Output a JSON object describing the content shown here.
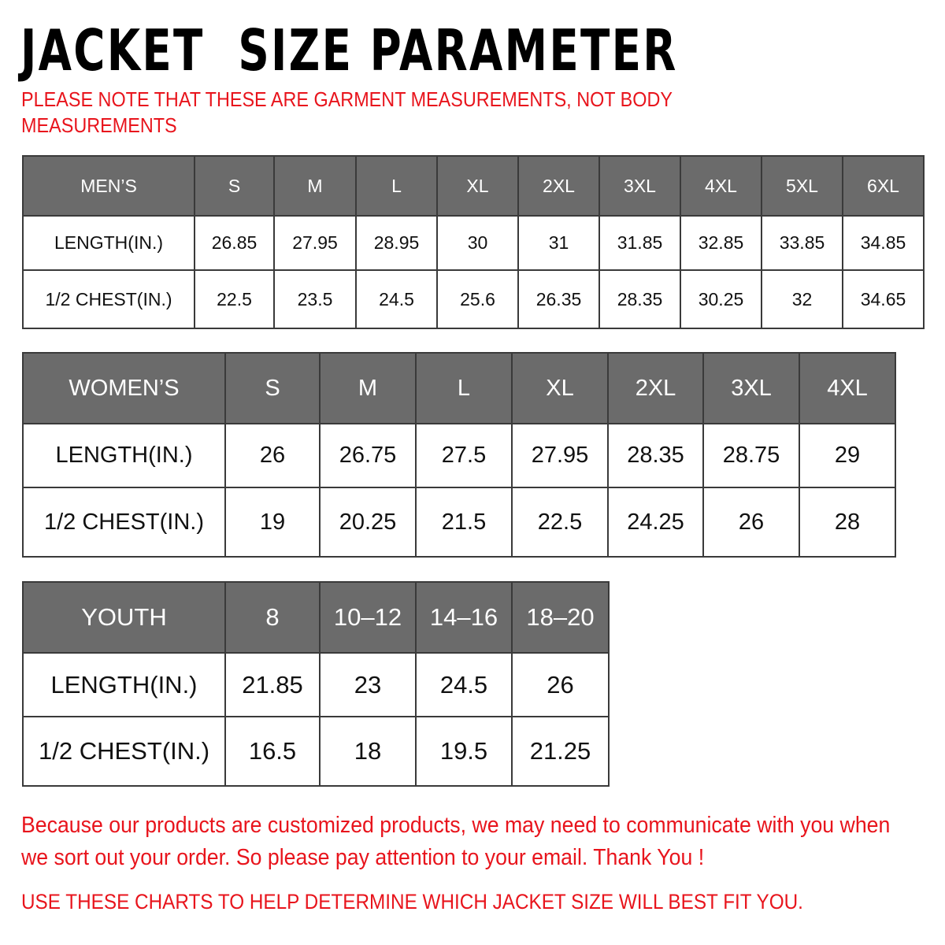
{
  "title": "JACKET  SIZE PARAMETER",
  "note": "PLEASE NOTE THAT THESE ARE GARMENT MEASUREMENTS, NOT BODY MEASUREMENTS",
  "colors": {
    "header_bg": "#6b6b6b",
    "accent_red": "#e8141c"
  },
  "tables": {
    "men": {
      "header": [
        "MEN’S",
        "S",
        "M",
        "L",
        "XL",
        "2XL",
        "3XL",
        "4XL",
        "5XL",
        "6XL"
      ],
      "rows": [
        [
          "LENGTH(IN.)",
          "26.85",
          "27.95",
          "28.95",
          "30",
          "31",
          "31.85",
          "32.85",
          "33.85",
          "34.85"
        ],
        [
          "1/2 CHEST(IN.)",
          "22.5",
          "23.5",
          "24.5",
          "25.6",
          "26.35",
          "28.35",
          "30.25",
          "32",
          "34.65"
        ]
      ]
    },
    "women": {
      "header": [
        "WOMEN’S",
        "S",
        "M",
        "L",
        "XL",
        "2XL",
        "3XL",
        "4XL"
      ],
      "rows": [
        [
          "LENGTH(IN.)",
          "26",
          "26.75",
          "27.5",
          "27.95",
          "28.35",
          "28.75",
          "29"
        ],
        [
          "1/2 CHEST(IN.)",
          "19",
          "20.25",
          "21.5",
          "22.5",
          "24.25",
          "26",
          "28"
        ]
      ]
    },
    "youth": {
      "header": [
        "YOUTH",
        "8",
        "10–12",
        "14–16",
        "18–20"
      ],
      "rows": [
        [
          "LENGTH(IN.)",
          "21.85",
          "23",
          "24.5",
          "26"
        ],
        [
          "1/2 CHEST(IN.)",
          "16.5",
          "18",
          "19.5",
          "21.25"
        ]
      ]
    }
  },
  "message": "Because our products are customized products, we may need to communicate with you when we sort out your order. So please pay attention to your email. Thank You !",
  "footer": "USE THESE CHARTS TO HELP DETERMINE WHICH JACKET SIZE WILL BEST FIT YOU."
}
